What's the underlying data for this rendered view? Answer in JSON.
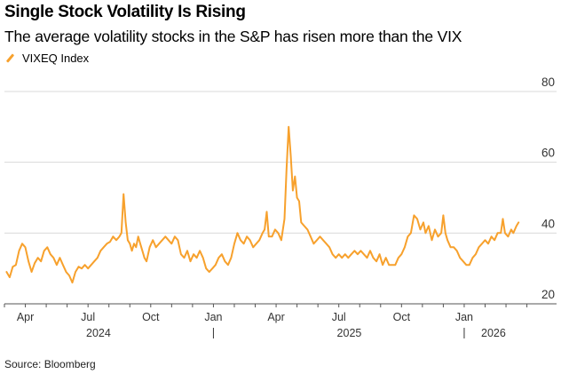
{
  "title": "Single Stock Volatility Is Rising",
  "subtitle": "The average volatility stocks in the S&P has risen more than the VIX",
  "source": "Source: Bloomberg",
  "colors": {
    "series": "#f7a12d",
    "grid": "#d9d9d9",
    "axis": "#555555"
  },
  "chart_data": {
    "type": "line",
    "title": "Single Stock Volatility Is Rising",
    "xlabel": "",
    "ylabel": "",
    "ylim": [
      20,
      80
    ],
    "yticks": [
      {
        "value": 80,
        "label": "80"
      },
      {
        "value": 60,
        "label": "60"
      },
      {
        "value": 40,
        "label": "40"
      },
      {
        "value": 20,
        "label": "20"
      }
    ],
    "xlim": [
      0,
      25.4
    ],
    "xticks": [
      {
        "month": 1,
        "label": "Apr"
      },
      {
        "month": 4,
        "label": "Jul"
      },
      {
        "month": 7,
        "label": "Oct"
      },
      {
        "month": 10,
        "label": "Jan"
      },
      {
        "month": 13,
        "label": "Apr"
      },
      {
        "month": 16,
        "label": "Jul"
      },
      {
        "month": 19,
        "label": "Oct"
      },
      {
        "month": 22,
        "label": "Jan"
      }
    ],
    "years": [
      {
        "month": 4.5,
        "label": "2024"
      },
      {
        "month": 16.5,
        "label": "2025"
      },
      {
        "month": 23.4,
        "label": "2026"
      }
    ],
    "year_separators": [
      10,
      22
    ],
    "legend": [
      "VIXEQ Index"
    ],
    "grid": true,
    "series": [
      {
        "name": "VIXEQ Index",
        "x_unit": "months since start of March 2024",
        "points": [
          [
            0.1,
            29
          ],
          [
            0.25,
            27.5
          ],
          [
            0.4,
            30.5
          ],
          [
            0.55,
            31
          ],
          [
            0.7,
            35
          ],
          [
            0.85,
            37
          ],
          [
            1.0,
            36
          ],
          [
            1.15,
            32
          ],
          [
            1.3,
            29
          ],
          [
            1.45,
            31.5
          ],
          [
            1.6,
            33
          ],
          [
            1.75,
            32
          ],
          [
            1.9,
            35
          ],
          [
            2.05,
            36
          ],
          [
            2.2,
            34
          ],
          [
            2.35,
            33
          ],
          [
            2.5,
            31
          ],
          [
            2.65,
            33
          ],
          [
            2.8,
            31
          ],
          [
            2.95,
            29
          ],
          [
            3.1,
            28
          ],
          [
            3.25,
            26
          ],
          [
            3.4,
            29
          ],
          [
            3.55,
            30.5
          ],
          [
            3.7,
            30
          ],
          [
            3.85,
            31
          ],
          [
            4.0,
            30
          ],
          [
            4.15,
            31
          ],
          [
            4.3,
            32
          ],
          [
            4.45,
            33
          ],
          [
            4.6,
            35
          ],
          [
            4.75,
            36
          ],
          [
            4.9,
            37
          ],
          [
            5.05,
            37.5
          ],
          [
            5.2,
            39
          ],
          [
            5.35,
            38
          ],
          [
            5.5,
            39
          ],
          [
            5.6,
            40
          ],
          [
            5.7,
            51
          ],
          [
            5.8,
            43
          ],
          [
            5.9,
            38
          ],
          [
            6.0,
            37
          ],
          [
            6.1,
            35
          ],
          [
            6.2,
            37
          ],
          [
            6.3,
            36
          ],
          [
            6.4,
            39
          ],
          [
            6.5,
            37
          ],
          [
            6.6,
            35
          ],
          [
            6.7,
            33
          ],
          [
            6.8,
            32
          ],
          [
            6.95,
            36
          ],
          [
            7.1,
            38
          ],
          [
            7.25,
            36
          ],
          [
            7.4,
            37
          ],
          [
            7.55,
            38
          ],
          [
            7.7,
            39
          ],
          [
            7.85,
            38
          ],
          [
            8.0,
            37
          ],
          [
            8.15,
            39
          ],
          [
            8.3,
            38
          ],
          [
            8.45,
            34
          ],
          [
            8.6,
            33
          ],
          [
            8.75,
            35
          ],
          [
            8.9,
            32
          ],
          [
            9.05,
            34
          ],
          [
            9.2,
            33
          ],
          [
            9.35,
            35
          ],
          [
            9.5,
            33
          ],
          [
            9.65,
            30
          ],
          [
            9.8,
            29
          ],
          [
            9.95,
            30
          ],
          [
            10.1,
            31
          ],
          [
            10.25,
            33
          ],
          [
            10.4,
            34
          ],
          [
            10.55,
            32
          ],
          [
            10.7,
            31
          ],
          [
            10.85,
            33
          ],
          [
            11.0,
            37
          ],
          [
            11.15,
            40
          ],
          [
            11.3,
            38
          ],
          [
            11.45,
            37
          ],
          [
            11.6,
            39
          ],
          [
            11.75,
            38
          ],
          [
            11.9,
            36
          ],
          [
            12.05,
            37
          ],
          [
            12.2,
            38
          ],
          [
            12.35,
            40
          ],
          [
            12.45,
            41
          ],
          [
            12.55,
            46
          ],
          [
            12.65,
            39
          ],
          [
            12.8,
            39
          ],
          [
            12.95,
            41
          ],
          [
            13.1,
            40
          ],
          [
            13.25,
            38
          ],
          [
            13.4,
            44
          ],
          [
            13.5,
            58
          ],
          [
            13.6,
            70
          ],
          [
            13.7,
            62
          ],
          [
            13.8,
            52
          ],
          [
            13.9,
            56
          ],
          [
            14.0,
            50
          ],
          [
            14.1,
            49
          ],
          [
            14.2,
            43
          ],
          [
            14.35,
            42
          ],
          [
            14.5,
            41
          ],
          [
            14.65,
            39
          ],
          [
            14.8,
            37
          ],
          [
            14.95,
            38
          ],
          [
            15.1,
            39
          ],
          [
            15.25,
            38
          ],
          [
            15.4,
            37
          ],
          [
            15.55,
            36
          ],
          [
            15.7,
            34
          ],
          [
            15.85,
            33
          ],
          [
            16.0,
            34
          ],
          [
            16.15,
            33
          ],
          [
            16.3,
            34
          ],
          [
            16.45,
            33
          ],
          [
            16.6,
            34
          ],
          [
            16.75,
            35
          ],
          [
            16.9,
            34
          ],
          [
            17.05,
            35
          ],
          [
            17.2,
            34
          ],
          [
            17.35,
            33
          ],
          [
            17.5,
            35
          ],
          [
            17.65,
            33
          ],
          [
            17.8,
            32
          ],
          [
            17.95,
            34
          ],
          [
            18.1,
            31
          ],
          [
            18.25,
            33
          ],
          [
            18.4,
            31
          ],
          [
            18.55,
            31
          ],
          [
            18.7,
            31
          ],
          [
            18.85,
            33
          ],
          [
            19.0,
            34
          ],
          [
            19.15,
            36
          ],
          [
            19.3,
            39
          ],
          [
            19.45,
            40
          ],
          [
            19.6,
            45
          ],
          [
            19.75,
            44
          ],
          [
            19.9,
            41
          ],
          [
            20.05,
            43
          ],
          [
            20.15,
            40
          ],
          [
            20.3,
            42
          ],
          [
            20.45,
            38
          ],
          [
            20.6,
            41
          ],
          [
            20.75,
            39
          ],
          [
            20.9,
            40
          ],
          [
            21.0,
            45
          ],
          [
            21.1,
            40
          ],
          [
            21.2,
            38
          ],
          [
            21.35,
            36
          ],
          [
            21.5,
            36
          ],
          [
            21.65,
            35
          ],
          [
            21.8,
            33
          ],
          [
            21.95,
            32
          ],
          [
            22.1,
            31
          ],
          [
            22.25,
            31
          ],
          [
            22.4,
            33
          ],
          [
            22.55,
            34
          ],
          [
            22.7,
            36
          ],
          [
            22.85,
            37
          ],
          [
            23.0,
            38
          ],
          [
            23.15,
            37
          ],
          [
            23.3,
            39
          ],
          [
            23.45,
            38
          ],
          [
            23.6,
            40
          ],
          [
            23.75,
            40
          ],
          [
            23.85,
            44
          ],
          [
            23.95,
            40
          ],
          [
            24.1,
            39
          ],
          [
            24.25,
            41
          ],
          [
            24.35,
            40
          ],
          [
            24.5,
            42
          ],
          [
            24.6,
            43
          ]
        ]
      }
    ]
  }
}
